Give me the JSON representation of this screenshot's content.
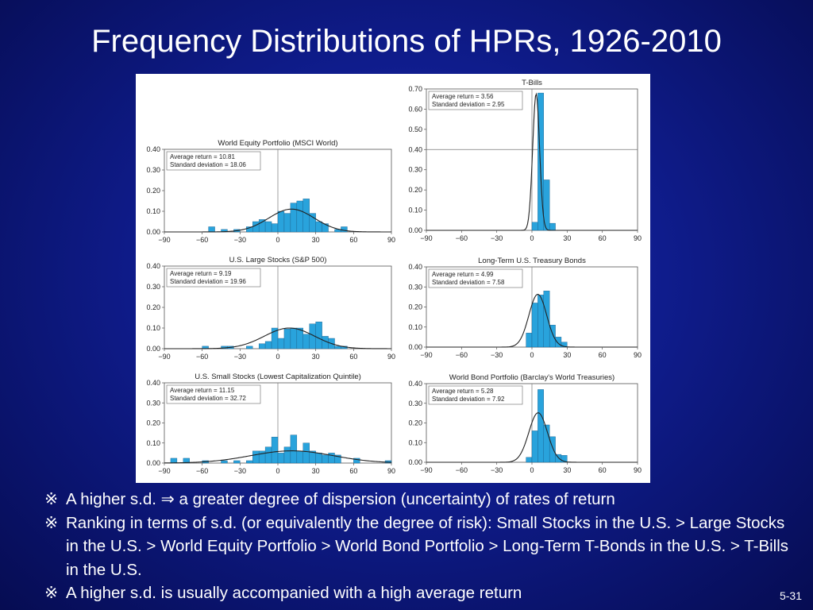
{
  "title": "Frequency Distributions of HPRs, 1926-2010",
  "bullets": [
    {
      "mark": "※",
      "text": "A higher s.d. ⇒ a greater degree of dispersion (uncertainty) of rates of return"
    },
    {
      "mark": "※",
      "text": "Ranking in terms of s.d. (or equivalently the degree of risk): Small Stocks in the U.S. > Large Stocks in the U.S. > World Equity Portfolio > World Bond Portfolio > Long-Term T-Bonds in the U.S. > T-Bills in the U.S."
    },
    {
      "mark": "※",
      "text": "A higher s.d. is usually accompanied with a high average return"
    }
  ],
  "page_number": "5-31",
  "colors": {
    "bar": "#29a3dc",
    "bar_edge": "#1a5d8a",
    "curve": "#222222",
    "axis": "#555555"
  },
  "chart_data": [
    {
      "type": "bar",
      "title": "World Equity Portfolio (MSCI World)",
      "xlim": [
        -90,
        90
      ],
      "ylim": [
        0,
        0.4
      ],
      "xticks": [
        "−90",
        "−60",
        "−30",
        "0",
        "30",
        "60",
        "90"
      ],
      "yticks": [
        "0.00",
        "0.10",
        "0.20",
        "0.30",
        "0.40"
      ],
      "legend": [
        "Average return = 10.81",
        "Standard deviation = 18.06"
      ],
      "mean": 10.81,
      "sd": 18.06,
      "bin_width": 5,
      "bins": [
        [
          -55,
          0.025
        ],
        [
          -45,
          0.012
        ],
        [
          -35,
          0.012
        ],
        [
          -25,
          0.025
        ],
        [
          -20,
          0.05
        ],
        [
          -15,
          0.06
        ],
        [
          -10,
          0.05
        ],
        [
          -5,
          0.04
        ],
        [
          0,
          0.1
        ],
        [
          5,
          0.09
        ],
        [
          10,
          0.14
        ],
        [
          15,
          0.15
        ],
        [
          20,
          0.16
        ],
        [
          25,
          0.09
        ],
        [
          30,
          0.05
        ],
        [
          35,
          0.04
        ],
        [
          45,
          0.012
        ],
        [
          50,
          0.025
        ]
      ]
    },
    {
      "type": "bar",
      "title": "T-Bills",
      "xlim": [
        -90,
        90
      ],
      "ylim": [
        0,
        0.7
      ],
      "xticks": [
        "−90",
        "−60",
        "−30",
        "0",
        "30",
        "60",
        "90"
      ],
      "yticks": [
        "0.00",
        "0.10",
        "0.20",
        "0.30",
        "0.40",
        "0.50",
        "0.60",
        "0.70"
      ],
      "legend": [
        "Average return = 3.56",
        "Standard deviation = 2.95"
      ],
      "mean": 3.56,
      "sd": 2.95,
      "bin_width": 5,
      "bins": [
        [
          0,
          0.04
        ],
        [
          5,
          0.68
        ],
        [
          10,
          0.25
        ],
        [
          15,
          0.035
        ]
      ]
    },
    {
      "type": "bar",
      "title": "U.S. Large Stocks (S&P 500)",
      "xlim": [
        -90,
        90
      ],
      "ylim": [
        0,
        0.4
      ],
      "xticks": [
        "−90",
        "−60",
        "−30",
        "0",
        "30",
        "60",
        "90"
      ],
      "yticks": [
        "0.00",
        "0.10",
        "0.20",
        "0.30",
        "0.40"
      ],
      "legend": [
        "Average return = 9.19",
        "Standard deviation = 19.96"
      ],
      "mean": 9.19,
      "sd": 19.96,
      "bin_width": 5,
      "bins": [
        [
          -60,
          0.012
        ],
        [
          -45,
          0.012
        ],
        [
          -40,
          0.012
        ],
        [
          -25,
          0.012
        ],
        [
          -15,
          0.024
        ],
        [
          -10,
          0.035
        ],
        [
          -5,
          0.1
        ],
        [
          0,
          0.05
        ],
        [
          5,
          0.095
        ],
        [
          10,
          0.1
        ],
        [
          15,
          0.1
        ],
        [
          20,
          0.07
        ],
        [
          25,
          0.12
        ],
        [
          30,
          0.13
        ],
        [
          35,
          0.06
        ],
        [
          40,
          0.05
        ],
        [
          45,
          0.012
        ],
        [
          50,
          0.012
        ]
      ]
    },
    {
      "type": "bar",
      "title": "Long-Term U.S. Treasury Bonds",
      "xlim": [
        -90,
        90
      ],
      "ylim": [
        0,
        0.4
      ],
      "xticks": [
        "−90",
        "−60",
        "−30",
        "0",
        "30",
        "60",
        "90"
      ],
      "yticks": [
        "0.00",
        "0.10",
        "0.20",
        "0.30",
        "0.40"
      ],
      "legend": [
        "Average return = 4.99",
        "Standard deviation = 7.58"
      ],
      "mean": 4.99,
      "sd": 7.58,
      "bin_width": 5,
      "bins": [
        [
          -5,
          0.07
        ],
        [
          0,
          0.22
        ],
        [
          5,
          0.26
        ],
        [
          10,
          0.28
        ],
        [
          15,
          0.11
        ],
        [
          20,
          0.05
        ],
        [
          25,
          0.025
        ]
      ]
    },
    {
      "type": "bar",
      "title": "U.S. Small Stocks (Lowest Capitalization Quintile)",
      "xlim": [
        -90,
        90
      ],
      "ylim": [
        0,
        0.4
      ],
      "xticks": [
        "−90",
        "−60",
        "−30",
        "0",
        "30",
        "60",
        "90"
      ],
      "yticks": [
        "0.00",
        "0.10",
        "0.20",
        "0.30",
        "0.40"
      ],
      "legend": [
        "Average return = 11.15",
        "Standard deviation = 32.72"
      ],
      "mean": 11.15,
      "sd": 32.72,
      "bin_width": 5,
      "bins": [
        [
          -85,
          0.024
        ],
        [
          -75,
          0.024
        ],
        [
          -60,
          0.012
        ],
        [
          -45,
          0.012
        ],
        [
          -35,
          0.012
        ],
        [
          -25,
          0.012
        ],
        [
          -20,
          0.06
        ],
        [
          -15,
          0.06
        ],
        [
          -10,
          0.08
        ],
        [
          -5,
          0.13
        ],
        [
          0,
          0.05
        ],
        [
          5,
          0.08
        ],
        [
          10,
          0.14
        ],
        [
          15,
          0.06
        ],
        [
          20,
          0.1
        ],
        [
          25,
          0.06
        ],
        [
          30,
          0.05
        ],
        [
          35,
          0.04
        ],
        [
          40,
          0.05
        ],
        [
          45,
          0.04
        ],
        [
          60,
          0.024
        ],
        [
          85,
          0.012
        ]
      ]
    },
    {
      "type": "bar",
      "title": "World Bond Portfolio (Barclay's World Treasuries)",
      "xlim": [
        -90,
        90
      ],
      "ylim": [
        0,
        0.4
      ],
      "xticks": [
        "−90",
        "−60",
        "−30",
        "0",
        "30",
        "60",
        "90"
      ],
      "yticks": [
        "0.00",
        "0.10",
        "0.20",
        "0.30",
        "0.40"
      ],
      "legend": [
        "Average return = 5.28",
        "Standard deviation = 7.92"
      ],
      "mean": 5.28,
      "sd": 7.92,
      "bin_width": 5,
      "bins": [
        [
          -5,
          0.025
        ],
        [
          0,
          0.16
        ],
        [
          5,
          0.37
        ],
        [
          10,
          0.19
        ],
        [
          15,
          0.13
        ],
        [
          20,
          0.04
        ],
        [
          25,
          0.035
        ]
      ]
    }
  ]
}
